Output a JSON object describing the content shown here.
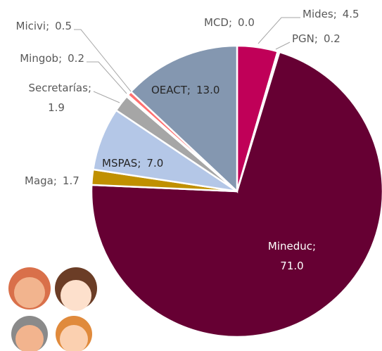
{
  "chart_data": {
    "type": "pie",
    "categories": [
      "MCD",
      "Mides",
      "PGN",
      "Mineduc",
      "Maga",
      "MSPAS",
      "Secretarías",
      "Mingob",
      "Micivi",
      "OEACT"
    ],
    "values": [
      0.0,
      4.5,
      0.2,
      71.0,
      1.7,
      7.0,
      1.9,
      0.2,
      0.5,
      13.0
    ],
    "value_labels": [
      "0.0",
      "4.5",
      "0.2",
      "71.0",
      "1.7",
      "7.0",
      "1.9",
      "0.2",
      "0.5",
      "13.0"
    ],
    "label_separator": ";",
    "colors": [
      "#7f7f7f",
      "#c00058",
      "#d9d9d9",
      "#660033",
      "#c09000",
      "#b4c7e7",
      "#a6a6a6",
      "#c8c8c8",
      "#ff7070",
      "#8497b0"
    ]
  }
}
